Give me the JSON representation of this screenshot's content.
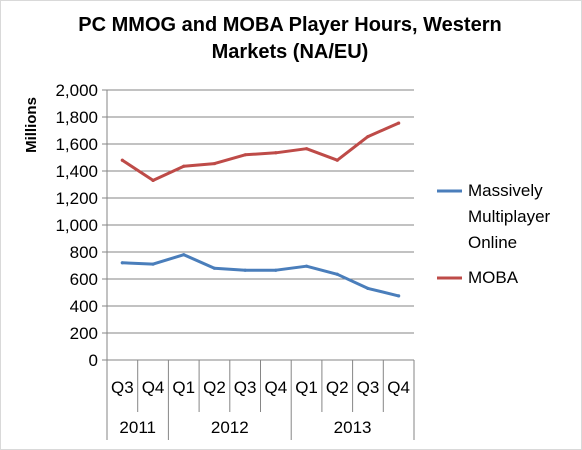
{
  "title_line1": "PC MMOG and MOBA Player Hours, Western",
  "title_line2": "Markets (NA/EU)",
  "chart_data": {
    "type": "line",
    "title": "PC MMOG and MOBA Player Hours, Western Markets (NA/EU)",
    "ylabel": "Millions",
    "xlabel": "",
    "ylim": [
      0,
      2000
    ],
    "yticks": [
      0,
      200,
      400,
      600,
      800,
      1000,
      1200,
      1400,
      1600,
      1800,
      2000
    ],
    "ytick_labels": [
      "0",
      "200",
      "400",
      "600",
      "800",
      "1,000",
      "1,200",
      "1,400",
      "1,600",
      "1,800",
      "2,000"
    ],
    "categories": [
      "Q3",
      "Q4",
      "Q1",
      "Q2",
      "Q3",
      "Q4",
      "Q1",
      "Q2",
      "Q3",
      "Q4"
    ],
    "year_groups": [
      {
        "label": "2011",
        "span": 2
      },
      {
        "label": "2012",
        "span": 4
      },
      {
        "label": "2013",
        "span": 4
      }
    ],
    "grid": true,
    "legend_position": "right",
    "series": [
      {
        "name": "Massively Multiplayer Online",
        "color": "#4a7ebb",
        "values": [
          720,
          710,
          780,
          680,
          665,
          665,
          695,
          635,
          530,
          475
        ]
      },
      {
        "name": "MOBA",
        "color": "#be4b48",
        "values": [
          1480,
          1330,
          1435,
          1455,
          1520,
          1535,
          1565,
          1480,
          1655,
          1755
        ]
      }
    ]
  },
  "legend": {
    "mmo_line1": "Massively",
    "mmo_line2": "Multiplayer",
    "mmo_line3": "Online",
    "moba": "MOBA"
  }
}
